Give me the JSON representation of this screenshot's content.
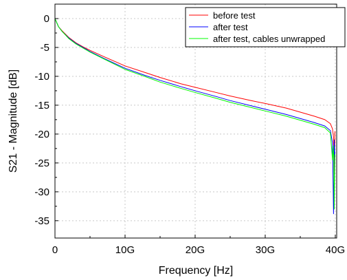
{
  "chart_data": {
    "type": "line",
    "title": "",
    "xlabel": "Frequency [Hz]",
    "ylabel": "S21 - Magnitude [dB]",
    "xlim": [
      0,
      40200000000
    ],
    "ylim": [
      -38,
      2.5
    ],
    "xticks": [
      {
        "value": 0,
        "label": "0"
      },
      {
        "value": 10000000000,
        "label": "10G"
      },
      {
        "value": 20000000000,
        "label": "20G"
      },
      {
        "value": 30000000000,
        "label": "30G"
      },
      {
        "value": 40000000000,
        "label": "40G"
      }
    ],
    "yticks": [
      {
        "value": 0,
        "label": "0"
      },
      {
        "value": -5,
        "label": "-5"
      },
      {
        "value": -10,
        "label": "-10"
      },
      {
        "value": -15,
        "label": "-15"
      },
      {
        "value": -20,
        "label": "-20"
      },
      {
        "value": -25,
        "label": "-25"
      },
      {
        "value": -30,
        "label": "-30"
      },
      {
        "value": -35,
        "label": "-35"
      }
    ],
    "grid": true,
    "legend_position": "top-right",
    "series": [
      {
        "name": "before test",
        "color": "#ff0000",
        "x": [
          0,
          500000000,
          1000000000,
          2000000000,
          3000000000,
          4000000000,
          5000000000,
          7000000000,
          10000000000,
          13000000000,
          15000000000,
          18000000000,
          20000000000,
          23000000000,
          25000000000,
          28000000000,
          30000000000,
          33000000000,
          35000000000,
          37000000000,
          38500000000,
          39300000000,
          39600000000,
          39750000000,
          39850000000,
          39950000000
        ],
        "y": [
          0,
          -1.4,
          -2.1,
          -3.3,
          -4.2,
          -4.9,
          -5.5,
          -6.6,
          -8.2,
          -9.4,
          -10.2,
          -11.3,
          -11.9,
          -12.8,
          -13.4,
          -14.2,
          -14.7,
          -15.5,
          -16.2,
          -16.9,
          -17.5,
          -18.2,
          -19.1,
          -20.5,
          -27.0,
          -19.5
        ]
      },
      {
        "name": "after test",
        "color": "#0000ff",
        "x": [
          0,
          500000000,
          1000000000,
          2000000000,
          3000000000,
          4000000000,
          5000000000,
          7000000000,
          10000000000,
          13000000000,
          15000000000,
          18000000000,
          20000000000,
          23000000000,
          25000000000,
          28000000000,
          30000000000,
          33000000000,
          35000000000,
          37000000000,
          38500000000,
          39300000000,
          39600000000,
          39750000000,
          39850000000,
          39950000000
        ],
        "y": [
          0,
          -1.4,
          -2.2,
          -3.4,
          -4.3,
          -5.0,
          -5.7,
          -6.9,
          -8.6,
          -9.9,
          -10.7,
          -11.8,
          -12.5,
          -13.5,
          -14.2,
          -15.1,
          -15.7,
          -16.6,
          -17.3,
          -18.0,
          -18.6,
          -19.4,
          -21.5,
          -33.8,
          -21.0,
          -24.0
        ]
      },
      {
        "name": "after test, cables unwrapped",
        "color": "#00ff00",
        "x": [
          0,
          500000000,
          1000000000,
          2000000000,
          3000000000,
          4000000000,
          5000000000,
          7000000000,
          10000000000,
          13000000000,
          15000000000,
          18000000000,
          20000000000,
          23000000000,
          25000000000,
          28000000000,
          30000000000,
          33000000000,
          35000000000,
          37000000000,
          38500000000,
          39300000000,
          39600000000,
          39750000000,
          39850000000,
          39950000000
        ],
        "y": [
          0,
          -1.4,
          -2.2,
          -3.5,
          -4.4,
          -5.1,
          -5.8,
          -7.0,
          -8.8,
          -10.1,
          -11.0,
          -12.1,
          -12.8,
          -13.8,
          -14.5,
          -15.4,
          -16.0,
          -16.9,
          -17.6,
          -18.3,
          -18.9,
          -19.8,
          -24.5,
          -22.0,
          -33.0,
          -23.5
        ]
      }
    ]
  }
}
